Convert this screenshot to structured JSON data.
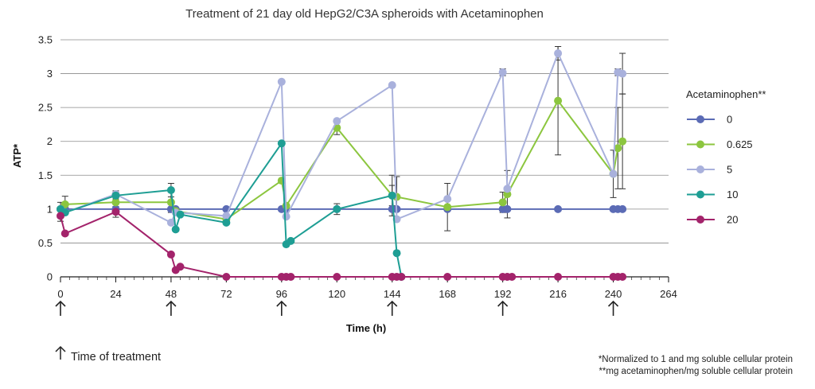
{
  "chart_data": {
    "type": "line",
    "title": "Treatment of 21 day old HepG2/C3A spheroids with Acetaminophen",
    "xlabel": "Time (h)",
    "ylabel": "ATP*",
    "xlim": [
      0,
      264
    ],
    "ylim": [
      0,
      3.5
    ],
    "x_ticks": [
      0,
      24,
      48,
      72,
      96,
      120,
      144,
      168,
      192,
      216,
      240,
      264
    ],
    "y_ticks": [
      0,
      0.5,
      1,
      1.5,
      2,
      2.5,
      3,
      3.5
    ],
    "x_tick_labels": [
      "0",
      "24",
      "48",
      "72",
      "96",
      "120",
      "144",
      "168",
      "192",
      "216",
      "240",
      "264"
    ],
    "y_tick_labels": [
      "0",
      "0.5",
      "1",
      "1.5",
      "2",
      "2.5",
      "3",
      "3.5"
    ],
    "grid": "horizontal",
    "legend_title": "Acetaminophen**",
    "legend_position": "right",
    "treatment_times": [
      0,
      48,
      96,
      144,
      192,
      240
    ],
    "treatment_label": "Time of treatment",
    "footnotes": [
      "*Normalized to 1 and mg soluble cellular protein",
      "**mg acetaminophen/mg soluble cellular protein"
    ],
    "series": [
      {
        "name": "0",
        "color": "#5b6bb5",
        "x": [
          0,
          2,
          24,
          48,
          50,
          72,
          96,
          98,
          120,
          144,
          146,
          168,
          192,
          194,
          216,
          240,
          242,
          244
        ],
        "y": [
          1,
          1,
          1,
          1,
          1,
          1,
          1,
          1,
          1,
          1,
          1,
          1,
          1,
          1,
          1,
          1,
          1,
          1
        ],
        "err": [
          0,
          0,
          0,
          0,
          0,
          0,
          0,
          0,
          0,
          0,
          0,
          0,
          0,
          0,
          0,
          0,
          0,
          0
        ]
      },
      {
        "name": "0.625",
        "color": "#8cc63f",
        "x": [
          0,
          2,
          24,
          48,
          50,
          72,
          96,
          98,
          120,
          144,
          146,
          168,
          192,
          194,
          216,
          240,
          242,
          244
        ],
        "y": [
          1,
          1.07,
          1.1,
          1.1,
          0.97,
          0.85,
          1.42,
          1.05,
          2.2,
          1.2,
          1.18,
          1.03,
          1.1,
          1.22,
          2.6,
          1.52,
          1.9,
          2.0
        ],
        "err": [
          0.1,
          0.12,
          0,
          0.15,
          0,
          0,
          0,
          0,
          0.1,
          0.3,
          0.3,
          0.35,
          0.15,
          0.35,
          0.8,
          0.35,
          0.6,
          0.7
        ]
      },
      {
        "name": "5",
        "color": "#a9b1dc",
        "x": [
          0,
          2,
          24,
          48,
          50,
          72,
          96,
          98,
          120,
          144,
          146,
          168,
          192,
          194,
          216,
          240,
          242,
          244
        ],
        "y": [
          1,
          0.95,
          1.22,
          0.8,
          0.95,
          0.9,
          2.88,
          0.89,
          2.3,
          2.83,
          0.85,
          1.15,
          3.02,
          1.3,
          3.3,
          1.52,
          3.02,
          3.0
        ],
        "err": [
          0,
          0,
          0.05,
          0,
          0,
          0,
          0,
          0,
          0,
          0,
          0,
          0,
          0.05,
          0,
          0.1,
          0,
          0.05,
          0.3
        ]
      },
      {
        "name": "10",
        "color": "#1e9e94",
        "x": [
          0,
          2,
          24,
          48,
          50,
          52,
          72,
          96,
          98,
          100,
          120,
          144,
          146,
          148
        ],
        "y": [
          1,
          0.95,
          1.2,
          1.28,
          0.7,
          0.92,
          0.8,
          1.97,
          0.48,
          0.53,
          1.0,
          1.2,
          0.35,
          0
        ],
        "err": [
          0,
          0,
          0.05,
          0.1,
          0,
          0,
          0,
          0,
          0,
          0,
          0.08,
          0.15,
          0,
          0
        ]
      },
      {
        "name": "20",
        "color": "#a3236b",
        "x": [
          0,
          2,
          24,
          48,
          50,
          52,
          72,
          96,
          98,
          100,
          120,
          144,
          146,
          148,
          168,
          192,
          194,
          196,
          216,
          240,
          242,
          244
        ],
        "y": [
          0.9,
          0.64,
          0.96,
          0.33,
          0.1,
          0.15,
          0,
          0,
          0,
          0,
          0,
          0,
          0,
          0,
          0,
          0,
          0,
          0,
          0,
          0,
          0,
          0
        ],
        "err": [
          0.08,
          0,
          0.08,
          0,
          0,
          0,
          0,
          0,
          0,
          0,
          0,
          0,
          0,
          0,
          0,
          0,
          0,
          0,
          0,
          0,
          0,
          0
        ]
      }
    ]
  }
}
